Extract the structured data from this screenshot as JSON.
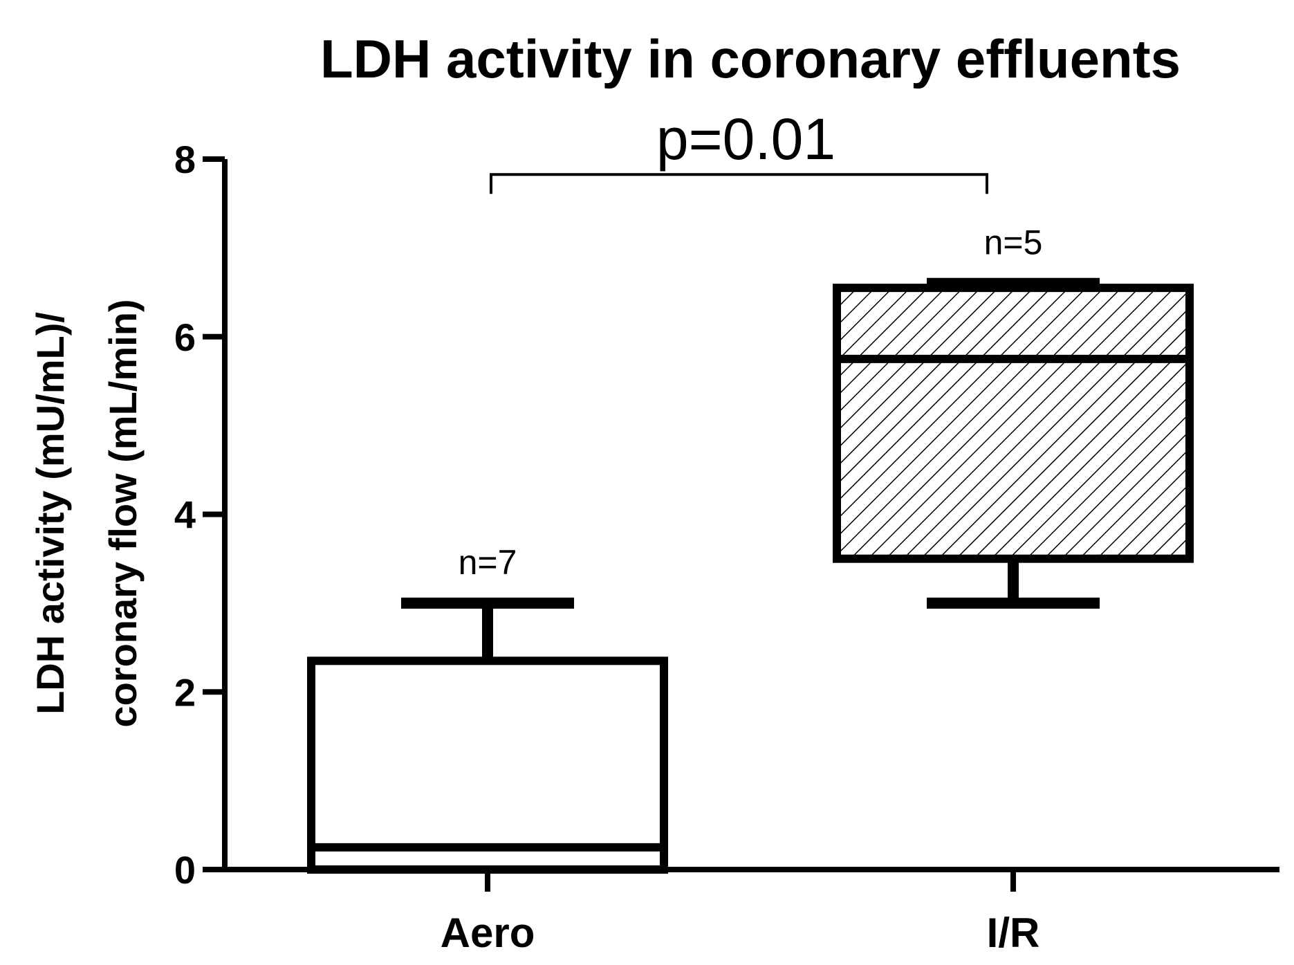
{
  "chart_data": {
    "type": "box",
    "title": "LDH activity in coronary effluents",
    "ylabel_line1": "LDH activity (mU/mL)/",
    "ylabel_line2": "coronary flow (mL/min)",
    "xlabel": "",
    "ylim": [
      0,
      8
    ],
    "yticks": [
      "0",
      "2",
      "4",
      "6",
      "8"
    ],
    "categories": [
      "Aero",
      "I/R"
    ],
    "boxes": [
      {
        "category": "Aero",
        "min": 0.0,
        "q1": 0.0,
        "median": 0.25,
        "q3": 2.35,
        "max": 3.0,
        "n_label": "n=7",
        "pattern": "none"
      },
      {
        "category": "I/R",
        "min": 3.0,
        "q1": 3.5,
        "median": 5.75,
        "q3": 6.55,
        "max": 6.6,
        "n_label": "n=5",
        "pattern": "hatched"
      }
    ],
    "annotation": {
      "text": "p=0.01",
      "between": [
        "Aero",
        "I/R"
      ],
      "y": 7.5
    },
    "grid": false,
    "legend": "none",
    "colors": {
      "stroke": "#000000",
      "fill": "#ffffff"
    }
  }
}
